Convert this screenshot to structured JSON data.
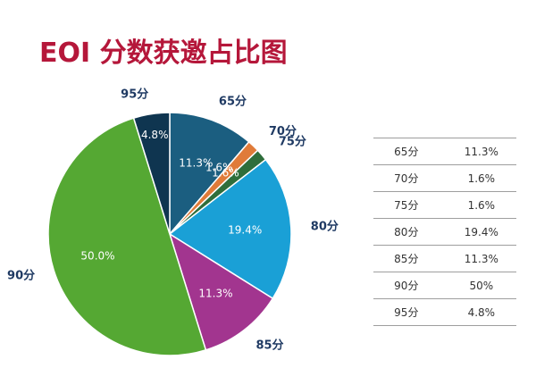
{
  "title": "EOI 分数获邀占比图",
  "chart_data": {
    "type": "pie",
    "title": "EOI 分数获邀占比图",
    "slices": [
      {
        "label": "65分",
        "value": 11.3,
        "pct_label": "11.3%",
        "color": "#1b5e80"
      },
      {
        "label": "70分",
        "value": 1.6,
        "pct_label": "1.6%",
        "color": "#e07b39"
      },
      {
        "label": "75分",
        "value": 1.6,
        "pct_label": "1.6%",
        "color": "#2f6e3b"
      },
      {
        "label": "80分",
        "value": 19.4,
        "pct_label": "19.4%",
        "color": "#1aa0d6"
      },
      {
        "label": "85分",
        "value": 11.3,
        "pct_label": "11.3%",
        "color": "#a2358f"
      },
      {
        "label": "90分",
        "value": 50.0,
        "pct_label": "50.0%",
        "color": "#55a833"
      },
      {
        "label": "95分",
        "value": 4.8,
        "pct_label": "4.8%",
        "color": "#0f3550"
      }
    ]
  },
  "table": {
    "rows": [
      {
        "score": "65分",
        "pct": "11.3%"
      },
      {
        "score": "70分",
        "pct": "1.6%"
      },
      {
        "score": "75分",
        "pct": "1.6%"
      },
      {
        "score": "80分",
        "pct": "19.4%"
      },
      {
        "score": "85分",
        "pct": "11.3%"
      },
      {
        "score": "90分",
        "pct": "50%"
      },
      {
        "score": "95分",
        "pct": "4.8%"
      }
    ]
  },
  "colors": {
    "title": "#b5173a",
    "category_label": "#1f3a63",
    "slice_text": "#ffffff",
    "rule": "#9e9e9e"
  }
}
